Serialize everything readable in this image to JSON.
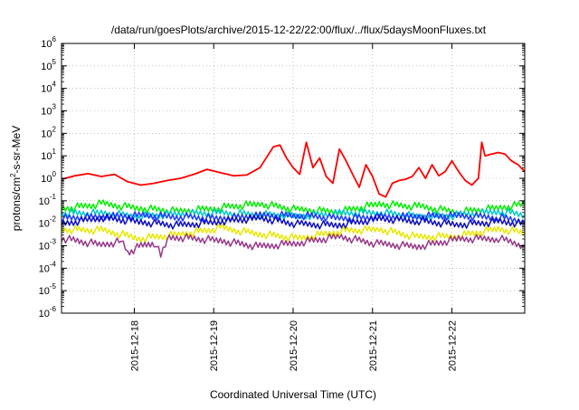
{
  "chart_data": {
    "type": "line",
    "title": "/data/run/goesPlots/archive/2015-12-22/22:00/flux/../flux/5daysMoonFluxes.txt",
    "xlabel": "Coordinated Universal Time (UTC)",
    "ylabel_parts": [
      "protons/cm",
      "2",
      "-s-sr-MeV"
    ],
    "yscale": "log",
    "ylim": [
      1e-06,
      1000000.0
    ],
    "y_ticks": [
      {
        "base": "10",
        "exp": "-6",
        "value": 1e-06
      },
      {
        "base": "10",
        "exp": "-5",
        "value": 1e-05
      },
      {
        "base": "10",
        "exp": "-4",
        "value": 0.0001
      },
      {
        "base": "10",
        "exp": "-3",
        "value": 0.001
      },
      {
        "base": "10",
        "exp": "-2",
        "value": 0.01
      },
      {
        "base": "10",
        "exp": "-1",
        "value": 0.1
      },
      {
        "base": "10",
        "exp": "0",
        "value": 1
      },
      {
        "base": "10",
        "exp": "1",
        "value": 10
      },
      {
        "base": "10",
        "exp": "2",
        "value": 100
      },
      {
        "base": "10",
        "exp": "3",
        "value": 1000
      },
      {
        "base": "10",
        "exp": "4",
        "value": 10000
      },
      {
        "base": "10",
        "exp": "5",
        "value": 100000
      },
      {
        "base": "10",
        "exp": "6",
        "value": 1000000
      }
    ],
    "xlim": [
      "2015-12-17T02:00",
      "2015-12-22T22:00"
    ],
    "x_ticks": [
      {
        "label": "2015-12-18",
        "value": "2015-12-18T00:00"
      },
      {
        "label": "2015-12-19",
        "value": "2015-12-19T00:00"
      },
      {
        "label": "2015-12-20",
        "value": "2015-12-20T00:00"
      },
      {
        "label": "2015-12-21",
        "value": "2015-12-21T00:00"
      },
      {
        "label": "2015-12-22",
        "value": "2015-12-22T00:00"
      }
    ],
    "grid": true,
    "series": [
      {
        "color": "#ff0000",
        "x": [
          "2015-12-17T02:00",
          "2015-12-17T06:00",
          "2015-12-17T10:00",
          "2015-12-17T14:00",
          "2015-12-17T18:00",
          "2015-12-17T22:00",
          "2015-12-18T02:00",
          "2015-12-18T06:00",
          "2015-12-18T10:00",
          "2015-12-18T14:00",
          "2015-12-18T18:00",
          "2015-12-18T22:00",
          "2015-12-19T02:00",
          "2015-12-19T06:00",
          "2015-12-19T10:00",
          "2015-12-19T14:00",
          "2015-12-19T18:00",
          "2015-12-19T20:00",
          "2015-12-19T22:00",
          "2015-12-20T00:00",
          "2015-12-20T02:00",
          "2015-12-20T04:00",
          "2015-12-20T06:00",
          "2015-12-20T08:00",
          "2015-12-20T10:00",
          "2015-12-20T12:00",
          "2015-12-20T14:00",
          "2015-12-20T16:00",
          "2015-12-20T18:00",
          "2015-12-20T20:00",
          "2015-12-20T22:00",
          "2015-12-21T00:00",
          "2015-12-21T02:00",
          "2015-12-21T04:00",
          "2015-12-21T06:00",
          "2015-12-21T08:00",
          "2015-12-21T10:00",
          "2015-12-21T12:00",
          "2015-12-21T14:00",
          "2015-12-21T16:00",
          "2015-12-21T18:00",
          "2015-12-21T20:00",
          "2015-12-21T22:00",
          "2015-12-22T00:00",
          "2015-12-22T02:00",
          "2015-12-22T04:00",
          "2015-12-22T06:00",
          "2015-12-22T08:00",
          "2015-12-22T09:00",
          "2015-12-22T10:00",
          "2015-12-22T12:00",
          "2015-12-22T14:00",
          "2015-12-22T16:00",
          "2015-12-22T18:00",
          "2015-12-22T20:00",
          "2015-12-22T22:00"
        ],
        "values": [
          0.9,
          1.3,
          1.6,
          1.2,
          1.5,
          0.7,
          0.5,
          0.6,
          0.8,
          1.0,
          1.5,
          2.5,
          1.8,
          1.3,
          1.4,
          3.0,
          25,
          30,
          8,
          3,
          1.5,
          40,
          3,
          8,
          1.2,
          0.6,
          20,
          6,
          1.5,
          0.4,
          4,
          1.2,
          0.2,
          0.15,
          0.6,
          0.8,
          0.9,
          1.2,
          3,
          1,
          4,
          1.3,
          2,
          6,
          2,
          0.8,
          0.5,
          1,
          40,
          10,
          12,
          14,
          12,
          6,
          4,
          2
        ]
      },
      {
        "color": "#00ee00",
        "x": [
          "2015-12-17T02:00",
          "2015-12-17T14:00",
          "2015-12-18T02:00",
          "2015-12-18T14:00",
          "2015-12-19T02:00",
          "2015-12-19T14:00",
          "2015-12-20T02:00",
          "2015-12-20T14:00",
          "2015-12-21T02:00",
          "2015-12-21T14:00",
          "2015-12-22T02:00",
          "2015-12-22T14:00",
          "2015-12-22T22:00"
        ],
        "values": [
          0.05,
          0.05,
          0.045,
          0.05,
          0.045,
          0.05,
          0.05,
          0.045,
          0.05,
          0.045,
          0.05,
          0.05,
          0.045
        ]
      },
      {
        "color": "#00c8c8",
        "x": [
          "2015-12-17T02:00",
          "2015-12-17T14:00",
          "2015-12-18T02:00",
          "2015-12-18T14:00",
          "2015-12-19T02:00",
          "2015-12-19T14:00",
          "2015-12-20T02:00",
          "2015-12-20T14:00",
          "2015-12-21T02:00",
          "2015-12-21T14:00",
          "2015-12-22T02:00",
          "2015-12-22T14:00",
          "2015-12-22T22:00"
        ],
        "values": [
          0.025,
          0.027,
          0.024,
          0.026,
          0.024,
          0.026,
          0.025,
          0.024,
          0.026,
          0.024,
          0.025,
          0.026,
          0.024
        ]
      },
      {
        "color": "#1e3cff",
        "x": [
          "2015-12-17T02:00",
          "2015-12-17T14:00",
          "2015-12-18T02:00",
          "2015-12-18T14:00",
          "2015-12-19T02:00",
          "2015-12-19T14:00",
          "2015-12-20T02:00",
          "2015-12-20T14:00",
          "2015-12-21T02:00",
          "2015-12-21T14:00",
          "2015-12-22T02:00",
          "2015-12-22T14:00",
          "2015-12-22T22:00"
        ],
        "values": [
          0.02,
          0.02,
          0.018,
          0.02,
          0.019,
          0.02,
          0.02,
          0.018,
          0.02,
          0.019,
          0.02,
          0.02,
          0.019
        ]
      },
      {
        "color": "#1010c0",
        "x": [
          "2015-12-17T02:00",
          "2015-12-17T14:00",
          "2015-12-18T02:00",
          "2015-12-18T14:00",
          "2015-12-19T02:00",
          "2015-12-19T14:00",
          "2015-12-20T02:00",
          "2015-12-20T14:00",
          "2015-12-21T02:00",
          "2015-12-21T14:00",
          "2015-12-22T02:00",
          "2015-12-22T14:00",
          "2015-12-22T22:00"
        ],
        "values": [
          0.011,
          0.012,
          0.011,
          0.012,
          0.011,
          0.012,
          0.011,
          0.011,
          0.012,
          0.011,
          0.012,
          0.012,
          0.011
        ]
      },
      {
        "color": "#e8e800",
        "x": [
          "2015-12-17T02:00",
          "2015-12-17T14:00",
          "2015-12-18T02:00",
          "2015-12-18T14:00",
          "2015-12-19T02:00",
          "2015-12-19T14:00",
          "2015-12-20T02:00",
          "2015-12-20T14:00",
          "2015-12-21T02:00",
          "2015-12-21T14:00",
          "2015-12-22T02:00",
          "2015-12-22T14:00",
          "2015-12-22T22:00"
        ],
        "values": [
          0.0035,
          0.0036,
          0.0035,
          0.0036,
          0.0035,
          0.0036,
          0.0035,
          0.0035,
          0.0036,
          0.0035,
          0.0036,
          0.0035,
          0.0035
        ]
      },
      {
        "color": "#993a8a",
        "x": [
          "2015-12-17T02:00",
          "2015-12-17T14:00",
          "2015-12-17T20:00",
          "2015-12-17T22:00",
          "2015-12-18T02:00",
          "2015-12-18T06:00",
          "2015-12-18T08:00",
          "2015-12-18T10:00",
          "2015-12-18T14:00",
          "2015-12-19T02:00",
          "2015-12-19T14:00",
          "2015-12-20T02:00",
          "2015-12-20T14:00",
          "2015-12-21T02:00",
          "2015-12-21T14:00",
          "2015-12-22T02:00",
          "2015-12-22T14:00",
          "2015-12-22T22:00"
        ],
        "values": [
          0.0014,
          0.0015,
          0.0014,
          0.0006,
          0.0014,
          0.0014,
          0.0005,
          0.0014,
          0.0015,
          0.0014,
          0.0015,
          0.0014,
          0.0015,
          0.0014,
          0.0015,
          0.0014,
          0.0015,
          0.0014
        ]
      }
    ]
  }
}
